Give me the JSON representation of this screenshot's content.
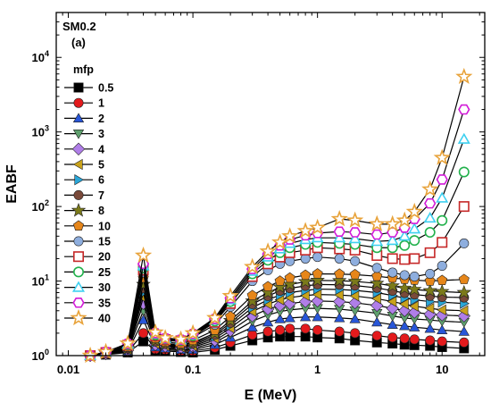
{
  "chart_data": {
    "type": "line",
    "annotations": [
      "SM0.2",
      "(a)"
    ],
    "xlabel": "E (MeV)",
    "ylabel": "EABF",
    "x_scale": "log",
    "y_scale": "log",
    "xlim": [
      0.008,
      22
    ],
    "ylim": [
      1,
      40000
    ],
    "x_ticks": [
      {
        "value": 0.01,
        "label": "0.01"
      },
      {
        "value": 0.1,
        "label": "0.1"
      },
      {
        "value": 1,
        "label": "1"
      },
      {
        "value": 10,
        "label": "10"
      }
    ],
    "y_ticks": [
      {
        "value": 1,
        "label": "10",
        "exp": "0"
      },
      {
        "value": 10,
        "label": "10",
        "exp": "1"
      },
      {
        "value": 100,
        "label": "10",
        "exp": "2"
      },
      {
        "value": 1000,
        "label": "10",
        "exp": "3"
      },
      {
        "value": 10000,
        "label": "10",
        "exp": "4"
      }
    ],
    "grid": false,
    "legend": {
      "title": "mfp",
      "position": "left-inside"
    },
    "x": [
      0.015,
      0.02,
      0.03,
      0.04,
      0.05,
      0.06,
      0.08,
      0.1,
      0.15,
      0.2,
      0.3,
      0.4,
      0.5,
      0.6,
      0.8,
      1,
      1.5,
      2,
      3,
      4,
      5,
      6,
      8,
      10,
      15
    ],
    "series": [
      {
        "name": "0.5",
        "marker": "square",
        "color": "#000000",
        "filled": true,
        "values": [
          1.0,
          1.03,
          1.1,
          1.55,
          1.18,
          1.15,
          1.12,
          1.1,
          1.2,
          1.35,
          1.6,
          1.75,
          1.8,
          1.8,
          1.8,
          1.75,
          1.7,
          1.6,
          1.5,
          1.45,
          1.4,
          1.38,
          1.35,
          1.3,
          1.25
        ]
      },
      {
        "name": "1",
        "marker": "circle",
        "color": "#e31a1c",
        "filled": true,
        "values": [
          1.0,
          1.04,
          1.12,
          2.0,
          1.22,
          1.2,
          1.16,
          1.15,
          1.28,
          1.5,
          1.9,
          2.1,
          2.2,
          2.3,
          2.3,
          2.2,
          2.1,
          2.0,
          1.85,
          1.75,
          1.7,
          1.65,
          1.6,
          1.55,
          1.5
        ]
      },
      {
        "name": "2",
        "marker": "triangle-up",
        "color": "#2856d8",
        "filled": true,
        "values": [
          1.0,
          1.05,
          1.14,
          3.0,
          1.3,
          1.25,
          1.2,
          1.2,
          1.4,
          1.75,
          2.4,
          2.8,
          3.1,
          3.2,
          3.3,
          3.3,
          3.2,
          3.1,
          2.8,
          2.6,
          2.5,
          2.4,
          2.3,
          2.2,
          2.1
        ]
      },
      {
        "name": "3",
        "marker": "triangle-down",
        "color": "#5fa06e",
        "filled": true,
        "values": [
          1.0,
          1.05,
          1.16,
          4.0,
          1.35,
          1.3,
          1.24,
          1.25,
          1.5,
          1.95,
          2.9,
          3.5,
          3.9,
          4.1,
          4.3,
          4.3,
          4.2,
          4.0,
          3.7,
          3.4,
          3.2,
          3.1,
          3.0,
          2.9,
          2.8
        ]
      },
      {
        "name": "4",
        "marker": "diamond",
        "color": "#b07ee8",
        "filled": true,
        "values": [
          1.0,
          1.06,
          1.18,
          5.0,
          1.4,
          1.33,
          1.27,
          1.3,
          1.6,
          2.15,
          3.4,
          4.2,
          4.7,
          5.0,
          5.3,
          5.4,
          5.3,
          5.1,
          4.7,
          4.3,
          4.0,
          3.8,
          3.6,
          3.5,
          3.4
        ]
      },
      {
        "name": "5",
        "marker": "triangle-left",
        "color": "#c9a21a",
        "filled": true,
        "values": [
          1.0,
          1.06,
          1.2,
          6.0,
          1.45,
          1.36,
          1.3,
          1.35,
          1.7,
          2.35,
          3.9,
          4.9,
          5.6,
          6.0,
          6.4,
          6.6,
          6.5,
          6.3,
          5.8,
          5.3,
          4.9,
          4.6,
          4.3,
          4.1,
          4.0
        ]
      },
      {
        "name": "6",
        "marker": "triangle-right",
        "color": "#29a6d8",
        "filled": true,
        "values": [
          1.0,
          1.07,
          1.22,
          7.0,
          1.5,
          1.4,
          1.33,
          1.4,
          1.8,
          2.55,
          4.4,
          5.6,
          6.5,
          7.0,
          7.5,
          7.8,
          7.7,
          7.5,
          7.0,
          6.4,
          5.9,
          5.6,
          5.3,
          5.2,
          5.0
        ]
      },
      {
        "name": "7",
        "marker": "circle",
        "color": "#7a4a3a",
        "filled": true,
        "values": [
          1.0,
          1.07,
          1.24,
          8.0,
          1.55,
          1.43,
          1.36,
          1.45,
          1.9,
          2.75,
          4.9,
          6.3,
          7.4,
          8.0,
          8.6,
          9.0,
          8.9,
          8.7,
          8.1,
          7.4,
          6.9,
          6.6,
          6.3,
          6.1,
          6.0
        ]
      },
      {
        "name": "8",
        "marker": "star",
        "color": "#7b7a1a",
        "filled": true,
        "values": [
          1.0,
          1.08,
          1.26,
          9.0,
          1.6,
          1.46,
          1.39,
          1.5,
          2.0,
          2.95,
          5.4,
          7.0,
          8.3,
          9.0,
          9.8,
          10.2,
          10.1,
          9.9,
          9.3,
          8.6,
          8.0,
          7.7,
          7.4,
          7.2,
          7.0
        ]
      },
      {
        "name": "10",
        "marker": "pentagon",
        "color": "#e6861a",
        "filled": true,
        "values": [
          1.0,
          1.09,
          1.3,
          11.0,
          1.7,
          1.52,
          1.45,
          1.6,
          2.2,
          3.35,
          6.4,
          8.4,
          10.0,
          11.0,
          12.0,
          12.5,
          12.4,
          12.2,
          11.6,
          11.0,
          10.6,
          10.3,
          10.0,
          10.2,
          10.5
        ]
      },
      {
        "name": "15",
        "marker": "circle",
        "color": "#8eaede",
        "filled": true,
        "values": [
          1.0,
          1.1,
          1.35,
          13.0,
          1.8,
          1.6,
          1.55,
          1.75,
          2.6,
          4.5,
          10.0,
          14.0,
          17.0,
          18.5,
          20.0,
          21.0,
          20.0,
          18.5,
          15.0,
          13.0,
          12.0,
          11.5,
          12.5,
          16.0,
          32.0
        ]
      },
      {
        "name": "20",
        "marker": "square",
        "color": "#c62828",
        "filled": false,
        "values": [
          1.0,
          1.1,
          1.38,
          14.0,
          1.85,
          1.64,
          1.58,
          1.8,
          2.8,
          5.0,
          11.5,
          17.0,
          21.0,
          24.0,
          26.0,
          28.0,
          27.0,
          26.0,
          22.0,
          20.0,
          19.5,
          20.0,
          24.0,
          33.0,
          100.0
        ]
      },
      {
        "name": "25",
        "marker": "circle",
        "color": "#22b14c",
        "filled": false,
        "values": [
          1.0,
          1.11,
          1.4,
          15.0,
          1.9,
          1.67,
          1.6,
          1.85,
          2.9,
          5.3,
          12.5,
          19.0,
          24.0,
          28.0,
          31.0,
          33.0,
          32.0,
          31.0,
          28.0,
          28.0,
          30.0,
          35.0,
          45.0,
          65.0,
          290.0
        ]
      },
      {
        "name": "30",
        "marker": "triangle-up",
        "color": "#3fd0f0",
        "filled": false,
        "values": [
          1.0,
          1.11,
          1.42,
          16.0,
          1.95,
          1.69,
          1.62,
          1.9,
          3.0,
          5.6,
          13.5,
          21.0,
          27.0,
          32.0,
          36.0,
          38.0,
          38.0,
          37.0,
          34.0,
          35.0,
          40.0,
          50.0,
          70.0,
          130.0,
          800.0
        ]
      },
      {
        "name": "35",
        "marker": "hexagon",
        "color": "#d21bd8",
        "filled": false,
        "values": [
          1.0,
          1.12,
          1.44,
          17.0,
          2.0,
          1.7,
          1.63,
          1.95,
          3.1,
          5.9,
          14.5,
          23.0,
          30.0,
          36.0,
          41.0,
          44.0,
          46.0,
          45.0,
          42.0,
          45.0,
          52.0,
          68.0,
          110.0,
          230.0,
          2000.0
        ]
      },
      {
        "name": "40",
        "marker": "star",
        "color": "#e8a33b",
        "filled": false,
        "values": [
          1.0,
          1.12,
          1.46,
          22.0,
          2.05,
          1.72,
          1.65,
          2.0,
          3.2,
          6.3,
          15.5,
          25.0,
          33.0,
          40.0,
          47.0,
          52.0,
          68.0,
          65.0,
          58.0,
          58.0,
          65.0,
          85.0,
          170.0,
          450.0,
          5500.0
        ]
      }
    ]
  }
}
